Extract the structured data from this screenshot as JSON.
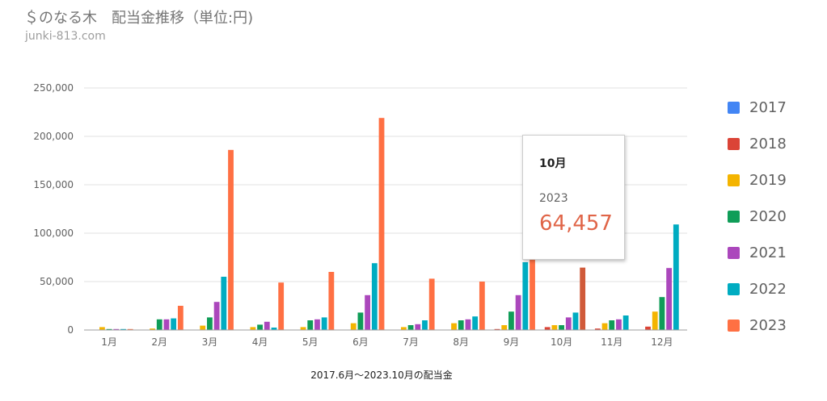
{
  "header": {
    "title": "＄のなる木　配当金推移（単位:円)",
    "subtitle": "junki-813.com"
  },
  "chart_data": {
    "type": "bar",
    "xlabel": "2017.6月～2023.10月の配当金",
    "ylabel": "",
    "ylim": [
      0,
      250000
    ],
    "yticks": [
      "0",
      "50,000",
      "100,000",
      "150,000",
      "200,000",
      "250,000"
    ],
    "ytick_values": [
      0,
      50000,
      100000,
      150000,
      200000,
      250000
    ],
    "grid": true,
    "legend_position": "right",
    "categories": [
      "1月",
      "2月",
      "3月",
      "4月",
      "5月",
      "6月",
      "7月",
      "8月",
      "9月",
      "10月",
      "11月",
      "12月"
    ],
    "series": [
      {
        "name": "2017",
        "color": "#4285f4",
        "values": [
          0,
          0,
          0,
          0,
          0,
          0,
          0,
          0,
          0,
          0,
          0,
          0
        ]
      },
      {
        "name": "2018",
        "color": "#db4437",
        "values": [
          0,
          0,
          0,
          0,
          0,
          0,
          0,
          0,
          1000,
          3000,
          1500,
          3500
        ]
      },
      {
        "name": "2019",
        "color": "#f4b400",
        "values": [
          3000,
          1500,
          4500,
          3000,
          3000,
          7000,
          3000,
          7000,
          5000,
          5000,
          7000,
          19000
        ]
      },
      {
        "name": "2020",
        "color": "#0f9d58",
        "values": [
          1000,
          11000,
          13000,
          5500,
          10000,
          18000,
          5000,
          10000,
          19000,
          5000,
          10000,
          34000
        ]
      },
      {
        "name": "2021",
        "color": "#ab47bc",
        "values": [
          1000,
          11000,
          29000,
          8500,
          11000,
          36000,
          6000,
          11000,
          36000,
          13000,
          11000,
          64000
        ]
      },
      {
        "name": "2022",
        "color": "#00acc1",
        "values": [
          1000,
          12000,
          55000,
          2500,
          13000,
          69000,
          10000,
          14000,
          70000,
          18000,
          15000,
          109000
        ]
      },
      {
        "name": "2023",
        "color": "#ff7043",
        "values": [
          1000,
          25000,
          186000,
          49000,
          60000,
          219000,
          53000,
          50000,
          201000,
          64457,
          null,
          null
        ]
      }
    ]
  },
  "tooltip": {
    "category": "10月",
    "series": "2023",
    "value": "64,457"
  }
}
